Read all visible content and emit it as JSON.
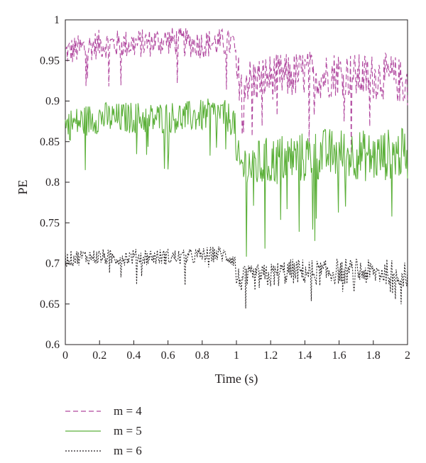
{
  "chart_data": {
    "type": "line",
    "title": "",
    "xlabel": "Time (s)",
    "ylabel": "PE",
    "xlim": [
      0,
      2
    ],
    "ylim": [
      0.6,
      1
    ],
    "xticks": [
      "0",
      "0.2",
      "0.4",
      "0.6",
      "0.8",
      "1",
      "1.2",
      "1.4",
      "1.6",
      "1.8",
      "2"
    ],
    "yticks": [
      "0.6",
      "0.65",
      "0.7",
      "0.75",
      "0.8",
      "0.85",
      "0.9",
      "0.95",
      "1"
    ],
    "grid": false,
    "legend_position": "below",
    "x": [
      0,
      0.1,
      0.2,
      0.3,
      0.4,
      0.5,
      0.6,
      0.7,
      0.8,
      0.9,
      0.99,
      1.0,
      1.1,
      1.2,
      1.3,
      1.4,
      1.5,
      1.6,
      1.7,
      1.8,
      1.9,
      2.0
    ],
    "series": [
      {
        "name": "m = 4",
        "style": "dashed",
        "color": "#b0479e",
        "values": [
          0.96,
          0.965,
          0.97,
          0.97,
          0.97,
          0.972,
          0.975,
          0.972,
          0.97,
          0.972,
          0.97,
          0.93,
          0.925,
          0.93,
          0.93,
          0.935,
          0.93,
          0.935,
          0.93,
          0.93,
          0.93,
          0.92
        ]
      },
      {
        "name": "m = 5",
        "style": "solid",
        "color": "#5cb03a",
        "values": [
          0.87,
          0.875,
          0.88,
          0.878,
          0.88,
          0.878,
          0.88,
          0.88,
          0.882,
          0.885,
          0.875,
          0.82,
          0.82,
          0.825,
          0.83,
          0.83,
          0.835,
          0.835,
          0.835,
          0.83,
          0.835,
          0.835
        ]
      },
      {
        "name": "m = 6",
        "style": "dotted",
        "color": "#231f20",
        "values": [
          0.705,
          0.708,
          0.708,
          0.707,
          0.708,
          0.708,
          0.708,
          0.707,
          0.71,
          0.712,
          0.705,
          0.68,
          0.682,
          0.685,
          0.69,
          0.69,
          0.688,
          0.69,
          0.69,
          0.688,
          0.69,
          0.685
        ]
      }
    ]
  }
}
